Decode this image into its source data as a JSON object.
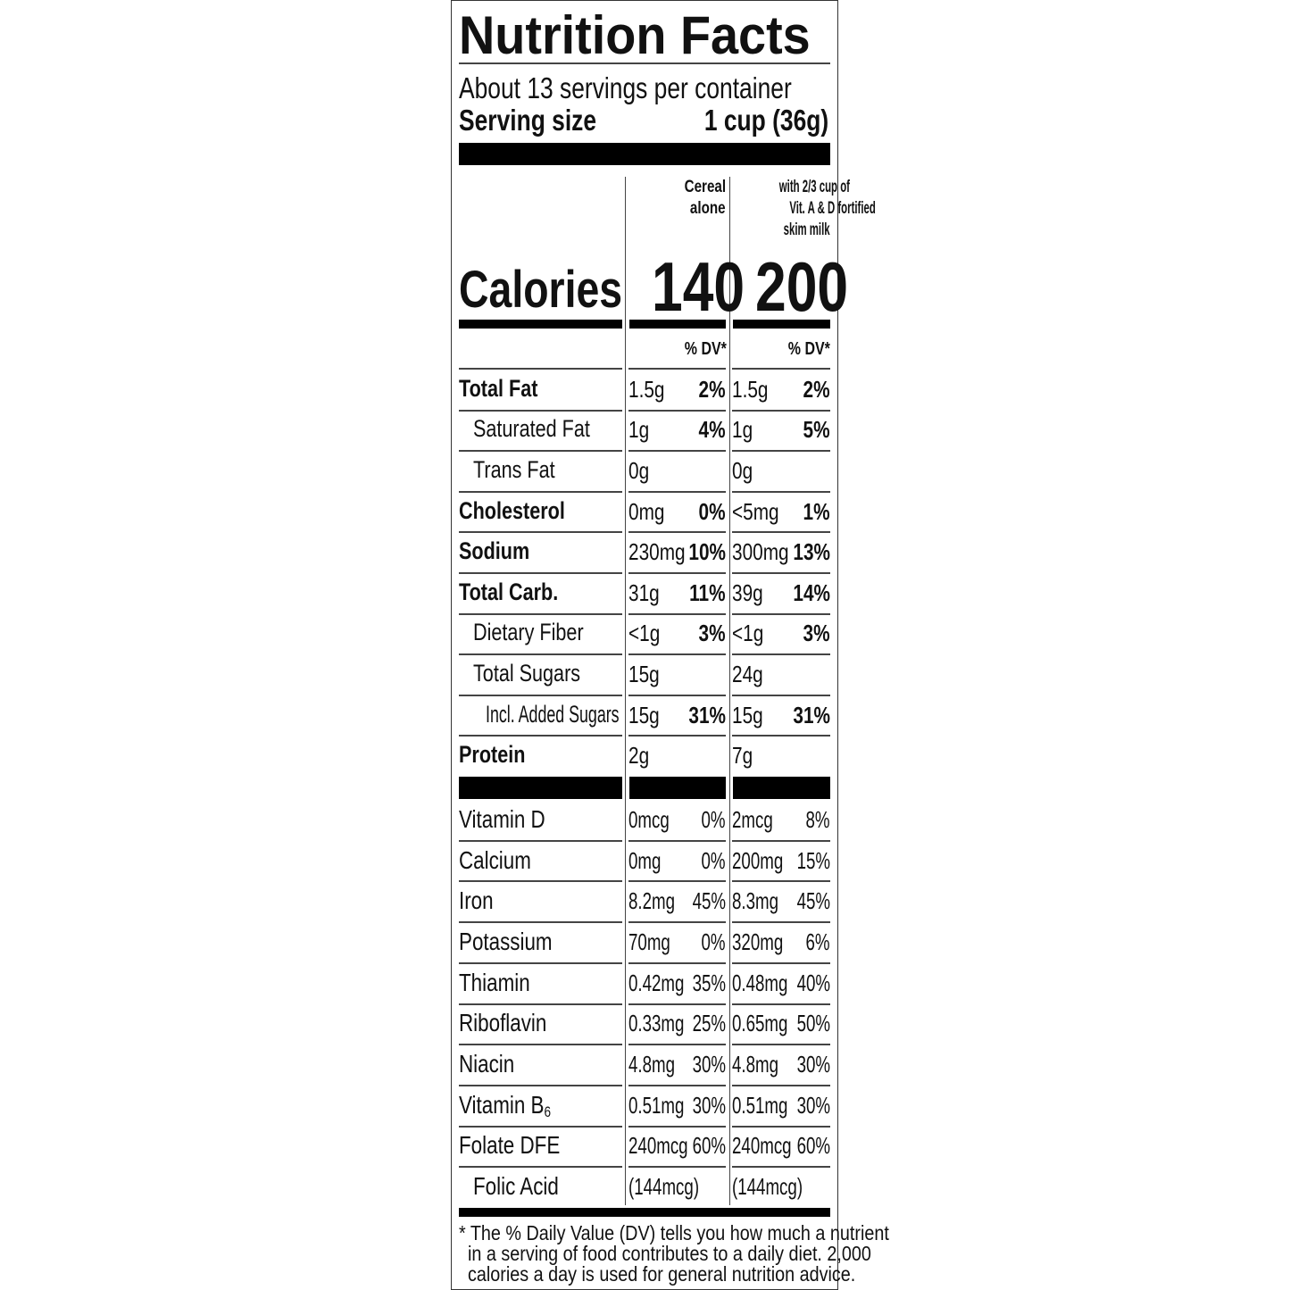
{
  "title": "Nutrition Facts",
  "servings_per_container": "About 13 servings per container",
  "serving_size_label": "Serving size",
  "serving_size_value": "1 cup (36g)",
  "columns": [
    {
      "header_lines": [
        "Cereal",
        "alone"
      ],
      "calories": "140",
      "dv_header": "% DV*"
    },
    {
      "header_lines": [
        "with 2/3 cup of",
        "Vit. A & D fortified",
        "skim milk"
      ],
      "calories": "200",
      "dv_header": "% DV*"
    }
  ],
  "calories_label": "Calories",
  "nutrients": [
    {
      "name": "Total Fat",
      "indent": 0,
      "bold": true,
      "c1": "1.5g",
      "d1": "2%",
      "c2": "1.5g",
      "d2": "2%"
    },
    {
      "name": "Saturated Fat",
      "indent": 1,
      "bold": false,
      "c1": "1g",
      "d1": "4%",
      "c2": "1g",
      "d2": "5%"
    },
    {
      "name": "Trans Fat",
      "indent": 1,
      "bold": false,
      "c1": "0g",
      "d1": "",
      "c2": "0g",
      "d2": ""
    },
    {
      "name": "Cholesterol",
      "indent": 0,
      "bold": true,
      "c1": "0mg",
      "d1": "0%",
      "c2": "<5mg",
      "d2": "1%"
    },
    {
      "name": "Sodium",
      "indent": 0,
      "bold": true,
      "c1": "230mg",
      "d1": "10%",
      "c2": "300mg",
      "d2": "13%"
    },
    {
      "name": "Total Carb.",
      "indent": 0,
      "bold": true,
      "c1": "31g",
      "d1": "11%",
      "c2": "39g",
      "d2": "14%"
    },
    {
      "name": "Dietary Fiber",
      "indent": 1,
      "bold": false,
      "c1": "<1g",
      "d1": "3%",
      "c2": "<1g",
      "d2": "3%"
    },
    {
      "name": "Total Sugars",
      "indent": 1,
      "bold": false,
      "c1": "15g",
      "d1": "",
      "c2": "24g",
      "d2": ""
    },
    {
      "name": "Incl. Added Sugars",
      "indent": 2,
      "bold": false,
      "c1": "15g",
      "d1": "31%",
      "c2": "15g",
      "d2": "31%"
    },
    {
      "name": "Protein",
      "indent": 0,
      "bold": true,
      "c1": "2g",
      "d1": "",
      "c2": "7g",
      "d2": ""
    }
  ],
  "vitamins": [
    {
      "name": "Vitamin D",
      "sub": "",
      "indent": 0,
      "c1": "0mcg",
      "d1": "0%",
      "c2": "2mcg",
      "d2": "8%"
    },
    {
      "name": "Calcium",
      "sub": "",
      "indent": 0,
      "c1": "0mg",
      "d1": "0%",
      "c2": "200mg",
      "d2": "15%"
    },
    {
      "name": "Iron",
      "sub": "",
      "indent": 0,
      "c1": "8.2mg",
      "d1": "45%",
      "c2": "8.3mg",
      "d2": "45%"
    },
    {
      "name": "Potassium",
      "sub": "",
      "indent": 0,
      "c1": "70mg",
      "d1": "0%",
      "c2": "320mg",
      "d2": "6%"
    },
    {
      "name": "Thiamin",
      "sub": "",
      "indent": 0,
      "c1": "0.42mg",
      "d1": "35%",
      "c2": "0.48mg",
      "d2": "40%"
    },
    {
      "name": "Riboflavin",
      "sub": "",
      "indent": 0,
      "c1": "0.33mg",
      "d1": "25%",
      "c2": "0.65mg",
      "d2": "50%"
    },
    {
      "name": "Niacin",
      "sub": "",
      "indent": 0,
      "c1": "4.8mg",
      "d1": "30%",
      "c2": "4.8mg",
      "d2": "30%"
    },
    {
      "name": "Vitamin B",
      "sub": "6",
      "indent": 0,
      "c1": "0.51mg",
      "d1": "30%",
      "c2": "0.51mg",
      "d2": "30%"
    },
    {
      "name": "Folate DFE",
      "sub": "",
      "indent": 0,
      "c1": "240mcg",
      "d1": "60%",
      "c2": "240mcg",
      "d2": "60%"
    },
    {
      "name": "Folic Acid",
      "sub": "",
      "indent": 1,
      "c1": "(144mcg)",
      "d1": "",
      "c2": "(144mcg)",
      "d2": ""
    }
  ],
  "footnote_lines": [
    "* The % Daily Value (DV) tells you how much a nutrient",
    "in a serving of food contributes to a daily diet. 2,000",
    "calories a day is used for general nutrition advice."
  ]
}
